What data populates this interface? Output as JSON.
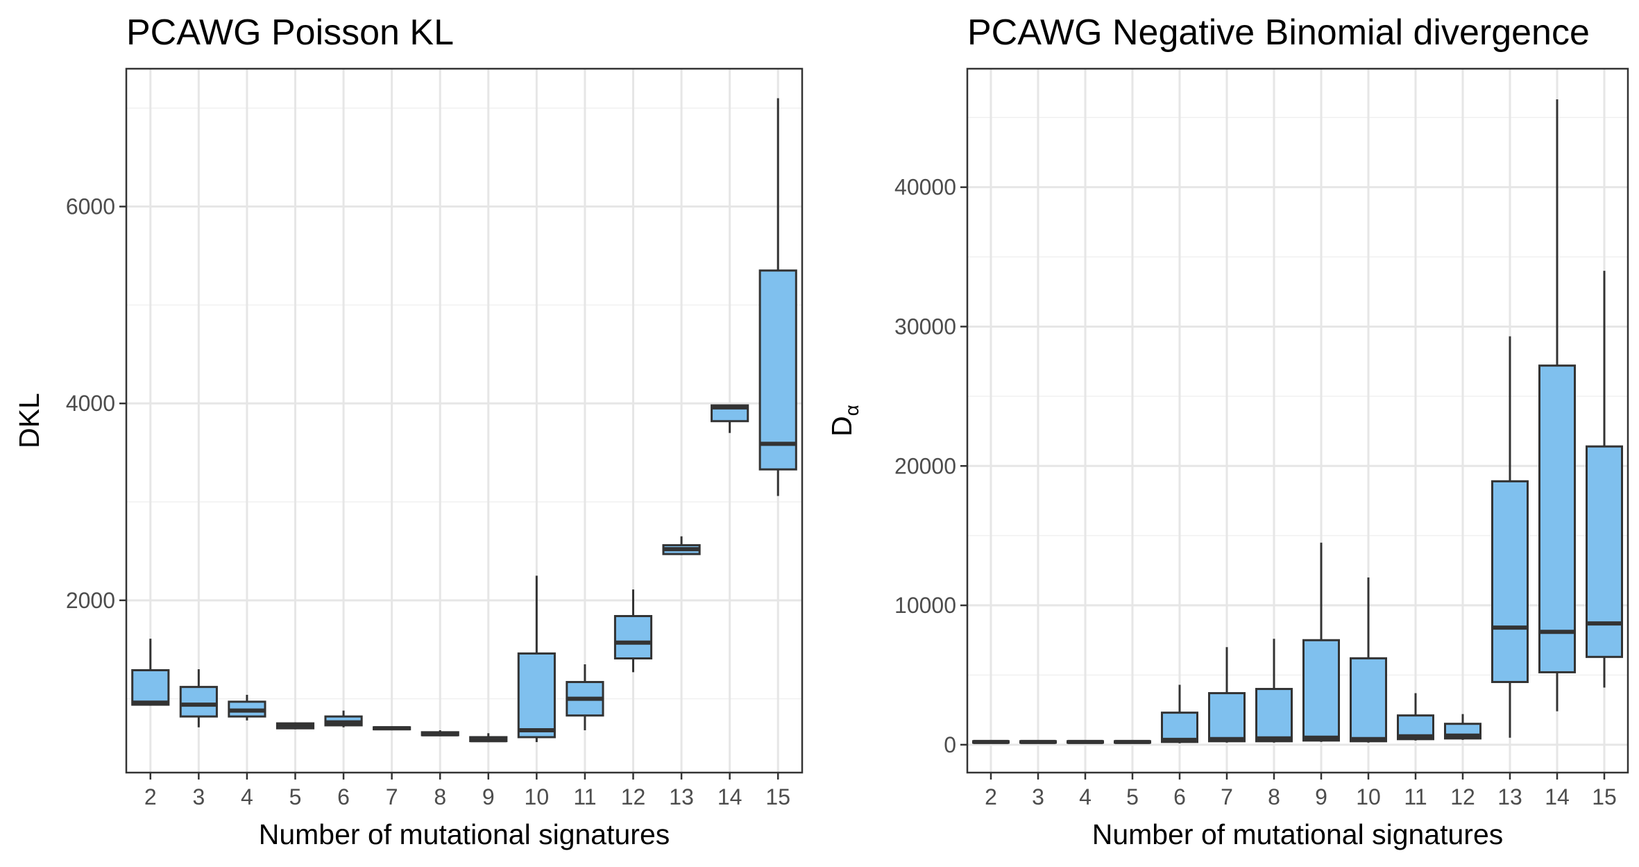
{
  "chart_data": [
    {
      "type": "box",
      "title": "PCAWG Poisson KL",
      "xlabel": "Number of mutational signatures",
      "ylabel": "DKL",
      "ylabel_subscript": "",
      "categories": [
        "2",
        "3",
        "4",
        "5",
        "6",
        "7",
        "8",
        "9",
        "10",
        "11",
        "12",
        "13",
        "14",
        "15"
      ],
      "ylim": [
        250,
        7400
      ],
      "y_ticks": [
        2000,
        4000,
        6000
      ],
      "y_tick_labels": [
        "2000",
        "4000",
        "6000"
      ],
      "grid": true,
      "fill_color": "#7fc0ee",
      "line_color": "#333333",
      "boxes": [
        {
          "min": 930,
          "q1": 940,
          "median": 960,
          "q3": 1290,
          "max": 1610
        },
        {
          "min": 710,
          "q1": 820,
          "median": 940,
          "q3": 1120,
          "max": 1300
        },
        {
          "min": 780,
          "q1": 820,
          "median": 880,
          "q3": 970,
          "max": 1040
        },
        {
          "min": 690,
          "q1": 700,
          "median": 730,
          "q3": 750,
          "max": 760
        },
        {
          "min": 710,
          "q1": 730,
          "median": 760,
          "q3": 820,
          "max": 880
        },
        {
          "min": 680,
          "q1": 690,
          "median": 700,
          "q3": 710,
          "max": 720
        },
        {
          "min": 620,
          "q1": 630,
          "median": 640,
          "q3": 660,
          "max": 680
        },
        {
          "min": 560,
          "q1": 570,
          "median": 580,
          "q3": 610,
          "max": 650
        },
        {
          "min": 560,
          "q1": 610,
          "median": 680,
          "q3": 1460,
          "max": 2250
        },
        {
          "min": 680,
          "q1": 830,
          "median": 1000,
          "q3": 1170,
          "max": 1350
        },
        {
          "min": 1270,
          "q1": 1410,
          "median": 1570,
          "q3": 1840,
          "max": 2110
        },
        {
          "min": 2460,
          "q1": 2470,
          "median": 2520,
          "q3": 2560,
          "max": 2650
        },
        {
          "min": 3700,
          "q1": 3820,
          "median": 3960,
          "q3": 3980,
          "max": 3990
        },
        {
          "min": 3060,
          "q1": 3330,
          "median": 3590,
          "q3": 5350,
          "max": 7100
        }
      ]
    },
    {
      "type": "box",
      "title": "PCAWG Negative Binomial divergence",
      "xlabel": "Number of mutational signatures",
      "ylabel": "D",
      "ylabel_subscript": "α",
      "categories": [
        "2",
        "3",
        "4",
        "5",
        "6",
        "7",
        "8",
        "9",
        "10",
        "11",
        "12",
        "13",
        "14",
        "15"
      ],
      "ylim": [
        -2000,
        48500
      ],
      "y_ticks": [
        0,
        10000,
        20000,
        30000,
        40000
      ],
      "y_tick_labels": [
        "0",
        "10000",
        "20000",
        "30000",
        "40000"
      ],
      "grid": true,
      "fill_color": "#7fc0ee",
      "line_color": "#333333",
      "boxes": [
        {
          "min": 120,
          "q1": 150,
          "median": 200,
          "q3": 250,
          "max": 280
        },
        {
          "min": 120,
          "q1": 150,
          "median": 200,
          "q3": 250,
          "max": 280
        },
        {
          "min": 120,
          "q1": 150,
          "median": 200,
          "q3": 250,
          "max": 280
        },
        {
          "min": 120,
          "q1": 150,
          "median": 200,
          "q3": 250,
          "max": 280
        },
        {
          "min": 100,
          "q1": 200,
          "median": 350,
          "q3": 2300,
          "max": 4300
        },
        {
          "min": 150,
          "q1": 250,
          "median": 400,
          "q3": 3700,
          "max": 7000
        },
        {
          "min": 150,
          "q1": 250,
          "median": 450,
          "q3": 4000,
          "max": 7600
        },
        {
          "min": 200,
          "q1": 300,
          "median": 500,
          "q3": 7500,
          "max": 14500
        },
        {
          "min": 150,
          "q1": 250,
          "median": 400,
          "q3": 6200,
          "max": 12000
        },
        {
          "min": 300,
          "q1": 400,
          "median": 600,
          "q3": 2100,
          "max": 3700
        },
        {
          "min": 350,
          "q1": 450,
          "median": 650,
          "q3": 1500,
          "max": 2200
        },
        {
          "min": 500,
          "q1": 4500,
          "median": 8400,
          "q3": 18900,
          "max": 29300
        },
        {
          "min": 2400,
          "q1": 5200,
          "median": 8100,
          "q3": 27200,
          "max": 46300
        },
        {
          "min": 4100,
          "q1": 6300,
          "median": 8700,
          "q3": 21400,
          "max": 34000
        }
      ]
    }
  ]
}
